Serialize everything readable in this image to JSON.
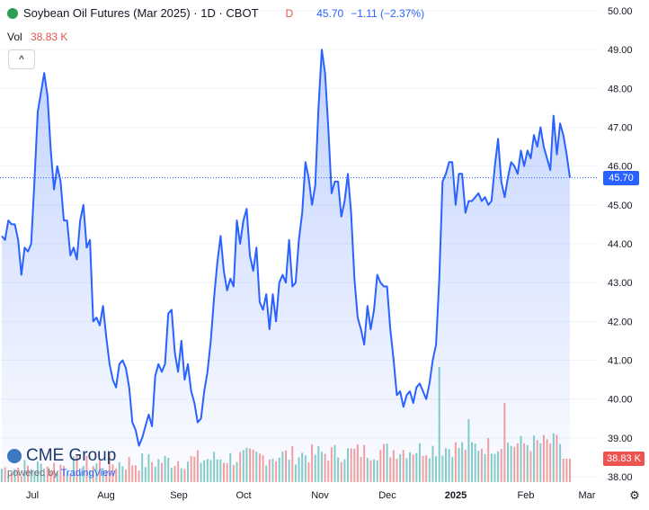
{
  "header": {
    "title": "Soybean Oil Futures (Mar 2025) · 1D · CBOT",
    "d_label": "D",
    "price": "45.70",
    "change": "−1.11 (−2.37%)",
    "vol_label": "Vol",
    "vol_value": "38.83 K",
    "collapse_glyph": "^"
  },
  "price_tag": "45.70",
  "volume_tag": "38.83 K",
  "logo": {
    "name": "CME Group",
    "powered_by": "powered by",
    "tradingview": "TradingView"
  },
  "colors": {
    "line": "#2962ff",
    "up_volume": "#26a69a",
    "down_volume": "#ef5350",
    "accent_red": "#e0554f"
  },
  "chart_data": {
    "type": "area",
    "y_axis_labels": [
      "50.00",
      "49.00",
      "48.00",
      "47.00",
      "46.00",
      "45.00",
      "44.00",
      "43.00",
      "42.00",
      "41.00",
      "40.00",
      "39.00",
      "38.00"
    ],
    "x_axis_labels": [
      "Jul",
      "Aug",
      "Sep",
      "Oct",
      "Nov",
      "Dec",
      "2025",
      "Feb",
      "Mar"
    ],
    "ylim": [
      37.9,
      50.3
    ],
    "series": [
      {
        "values": [
          44.2,
          44.1,
          44.6,
          44.5,
          44.5,
          44.1,
          43.2,
          43.9,
          43.8,
          44.0,
          45.6,
          47.4,
          47.9,
          48.4,
          47.8,
          46.4,
          45.4,
          46.0,
          45.6,
          44.6,
          44.6,
          43.7,
          43.9,
          43.6,
          44.6,
          45.0,
          43.9,
          44.1,
          42.0,
          42.1,
          41.9,
          42.4,
          41.6,
          40.9,
          40.5,
          40.3,
          40.9,
          41.0,
          40.8,
          40.3,
          39.4,
          39.2,
          38.8,
          39.0,
          39.3,
          39.6,
          39.3,
          40.6,
          40.9,
          40.7,
          40.9,
          42.2,
          42.3,
          41.2,
          40.7,
          41.5,
          40.5,
          40.9,
          40.2,
          39.9,
          39.4,
          39.5,
          40.2,
          40.7,
          41.5,
          42.6,
          43.5,
          44.2,
          43.3,
          42.8,
          43.1,
          42.9,
          44.6,
          44.0,
          44.6,
          44.9,
          43.7,
          43.3,
          43.9,
          42.5,
          42.3,
          42.7,
          41.8,
          42.7,
          42.0,
          43.0,
          43.2,
          43.0,
          44.1,
          42.9,
          43.0,
          44.1,
          44.8,
          46.1,
          45.7,
          45.0,
          45.5,
          47.5,
          49.0,
          48.4,
          47.0,
          45.3,
          45.6,
          45.6,
          44.7,
          45.1,
          45.8,
          44.8,
          43.1,
          42.1,
          41.8,
          41.4,
          42.4,
          41.8,
          42.3,
          43.2,
          43.0,
          42.9,
          42.9,
          41.8,
          41.0,
          40.1,
          40.2,
          39.8,
          40.1,
          40.2,
          39.9,
          40.3,
          40.4,
          40.2,
          40.0,
          40.4,
          41.0,
          41.4,
          43.1,
          45.6,
          45.8,
          46.1,
          46.1,
          45.0,
          45.8,
          45.8,
          44.8,
          45.1,
          45.1,
          45.2,
          45.3,
          45.1,
          45.2,
          45.0,
          45.1,
          46.0,
          46.7,
          45.6,
          45.2,
          45.7,
          46.1,
          46.0,
          45.8,
          46.4,
          46.0,
          46.4,
          46.2,
          46.8,
          46.5,
          47.0,
          46.5,
          46.2,
          45.9,
          47.3,
          46.3,
          47.1,
          46.8,
          46.3,
          45.7
        ],
        "volume_scale": "relative"
      }
    ],
    "last_value": 45.7
  }
}
